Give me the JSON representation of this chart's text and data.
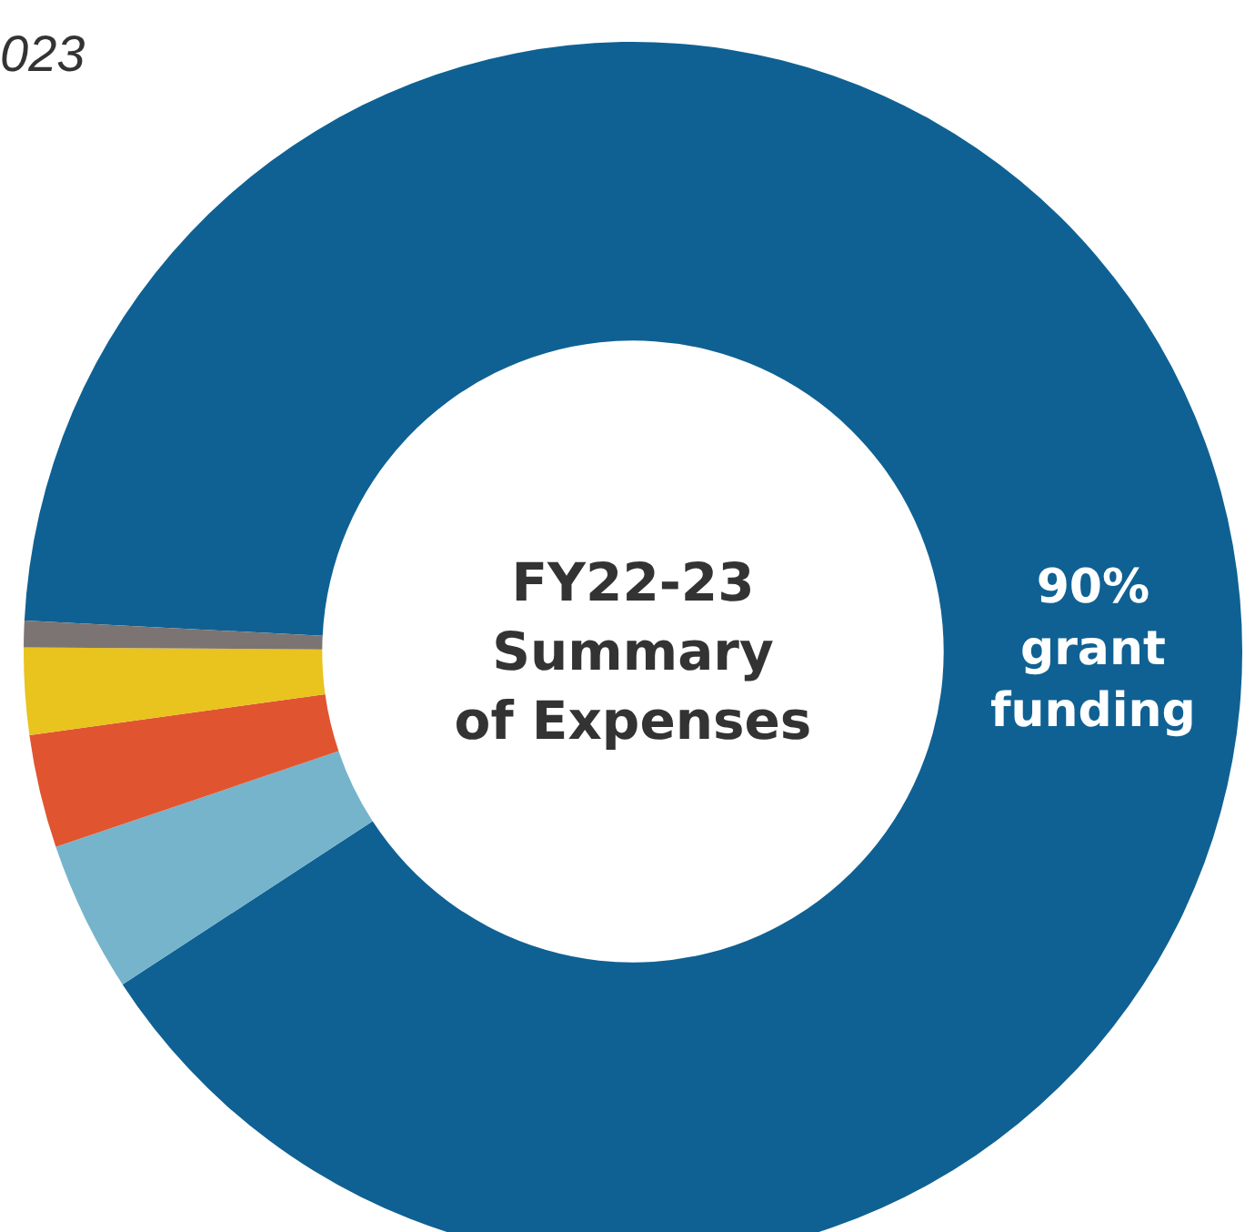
{
  "chart_data": {
    "type": "donut",
    "title": "FY22-23\nSummary\nof Expenses",
    "annotations": [
      "023"
    ],
    "categories": [
      "grant funding",
      null,
      null,
      null,
      null
    ],
    "values": [
      90,
      4,
      3,
      2.3,
      0.7
    ],
    "colors": [
      "#0f6193",
      "#76b4cc",
      "#e05530",
      "#e9c31e",
      "#7b7472"
    ],
    "value_labels": [
      "90%",
      null,
      null,
      null,
      null
    ],
    "legend": false
  }
}
